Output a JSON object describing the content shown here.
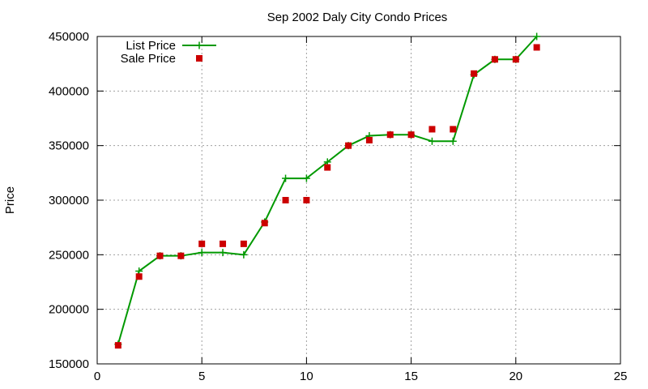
{
  "chart_data": {
    "type": "line",
    "title": "Sep 2002 Daly City Condo Prices",
    "xlabel": "",
    "ylabel": "Price",
    "xlim": [
      0,
      25
    ],
    "ylim": [
      150000,
      450000
    ],
    "x_ticks": [
      0,
      5,
      10,
      15,
      20,
      25
    ],
    "y_ticks": [
      150000,
      200000,
      250000,
      300000,
      350000,
      400000,
      450000
    ],
    "grid": true,
    "legend_position": "top-left",
    "series": [
      {
        "name": "List Price",
        "style": "lines+points",
        "marker": "plus",
        "color": "#009900",
        "x": [
          1,
          2,
          3,
          4,
          5,
          6,
          7,
          8,
          9,
          10,
          11,
          12,
          13,
          14,
          15,
          16,
          17,
          18,
          19,
          20,
          21
        ],
        "y": [
          168000,
          235000,
          249000,
          249000,
          252000,
          252000,
          250000,
          280000,
          320000,
          320000,
          335000,
          350000,
          359000,
          360000,
          360000,
          354000,
          354000,
          415000,
          429000,
          429000,
          450000
        ]
      },
      {
        "name": "Sale Price",
        "style": "points",
        "marker": "square",
        "color": "#cc0000",
        "x": [
          1,
          2,
          3,
          4,
          5,
          6,
          7,
          8,
          9,
          10,
          11,
          12,
          13,
          14,
          15,
          16,
          17,
          18,
          19,
          20,
          21
        ],
        "y": [
          167000,
          230000,
          249000,
          249000,
          260000,
          260000,
          260000,
          279000,
          300000,
          300000,
          330000,
          350000,
          355000,
          360000,
          360000,
          365000,
          365000,
          416000,
          429000,
          429000,
          440000
        ]
      }
    ]
  }
}
